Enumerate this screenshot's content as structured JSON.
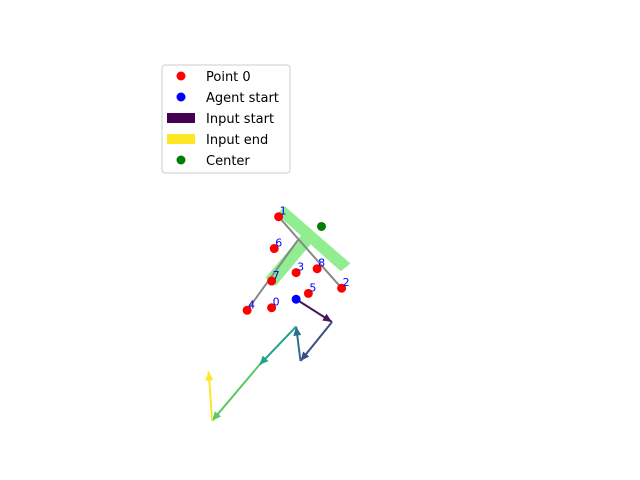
{
  "chart_data": {
    "type": "scatter",
    "title": "",
    "xlabel": "",
    "ylabel": "",
    "axes_visible": false,
    "grid": false,
    "legend_placement": "upper-left",
    "legend": [
      {
        "label": "Point 0",
        "marker": "circle",
        "color": "#ff0000"
      },
      {
        "label": "Agent start",
        "marker": "circle",
        "color": "#0000ff"
      },
      {
        "label": "Input start",
        "marker": "rect",
        "color": "#440154"
      },
      {
        "label": "Input end",
        "marker": "rect",
        "color": "#fde725"
      },
      {
        "label": "Center",
        "marker": "circle",
        "color": "#008000"
      }
    ],
    "points": [
      {
        "label": "0",
        "x": 0.27,
        "y": 0.42
      },
      {
        "label": "1",
        "x": 0.35,
        "y": 1.82
      },
      {
        "label": "2",
        "x": 1.07,
        "y": 0.72
      },
      {
        "label": "3",
        "x": 0.55,
        "y": 0.96
      },
      {
        "label": "4",
        "x": -0.01,
        "y": 0.38
      },
      {
        "label": "5",
        "x": 0.69,
        "y": 0.64
      },
      {
        "label": "6",
        "x": 0.3,
        "y": 1.33
      },
      {
        "label": "7",
        "x": 0.27,
        "y": 0.83
      },
      {
        "label": "8",
        "x": 0.79,
        "y": 1.02
      }
    ],
    "skeleton": [
      {
        "from": [
          0.35,
          1.82
        ],
        "to": [
          1.07,
          0.72
        ]
      },
      {
        "from": [
          0.57,
          1.46
        ],
        "to": [
          -0.01,
          0.38
        ]
      }
    ],
    "agent_start": {
      "x": 0.55,
      "y": 0.55
    },
    "center": {
      "x": 0.84,
      "y": 1.67
    },
    "t_shape_color": "#90ee90",
    "input_arrows": [
      {
        "from": [
          0.55,
          0.55
        ],
        "to": [
          0.96,
          0.2
        ],
        "color": "#46185e"
      },
      {
        "from": [
          0.96,
          0.2
        ],
        "to": [
          0.6,
          -0.4
        ],
        "color": "#3e4b8a"
      },
      {
        "from": [
          0.6,
          -0.4
        ],
        "to": [
          0.55,
          0.13
        ],
        "color": "#2c6f8e"
      },
      {
        "from": [
          0.55,
          0.13
        ],
        "to": [
          0.13,
          -0.46
        ],
        "color": "#23a387"
      },
      {
        "from": [
          0.13,
          -0.46
        ],
        "to": [
          -0.41,
          -1.32
        ],
        "color": "#5cc863"
      },
      {
        "from": [
          -0.41,
          -1.32
        ],
        "to": [
          -0.45,
          -0.56
        ],
        "color": "#fde725"
      }
    ]
  }
}
